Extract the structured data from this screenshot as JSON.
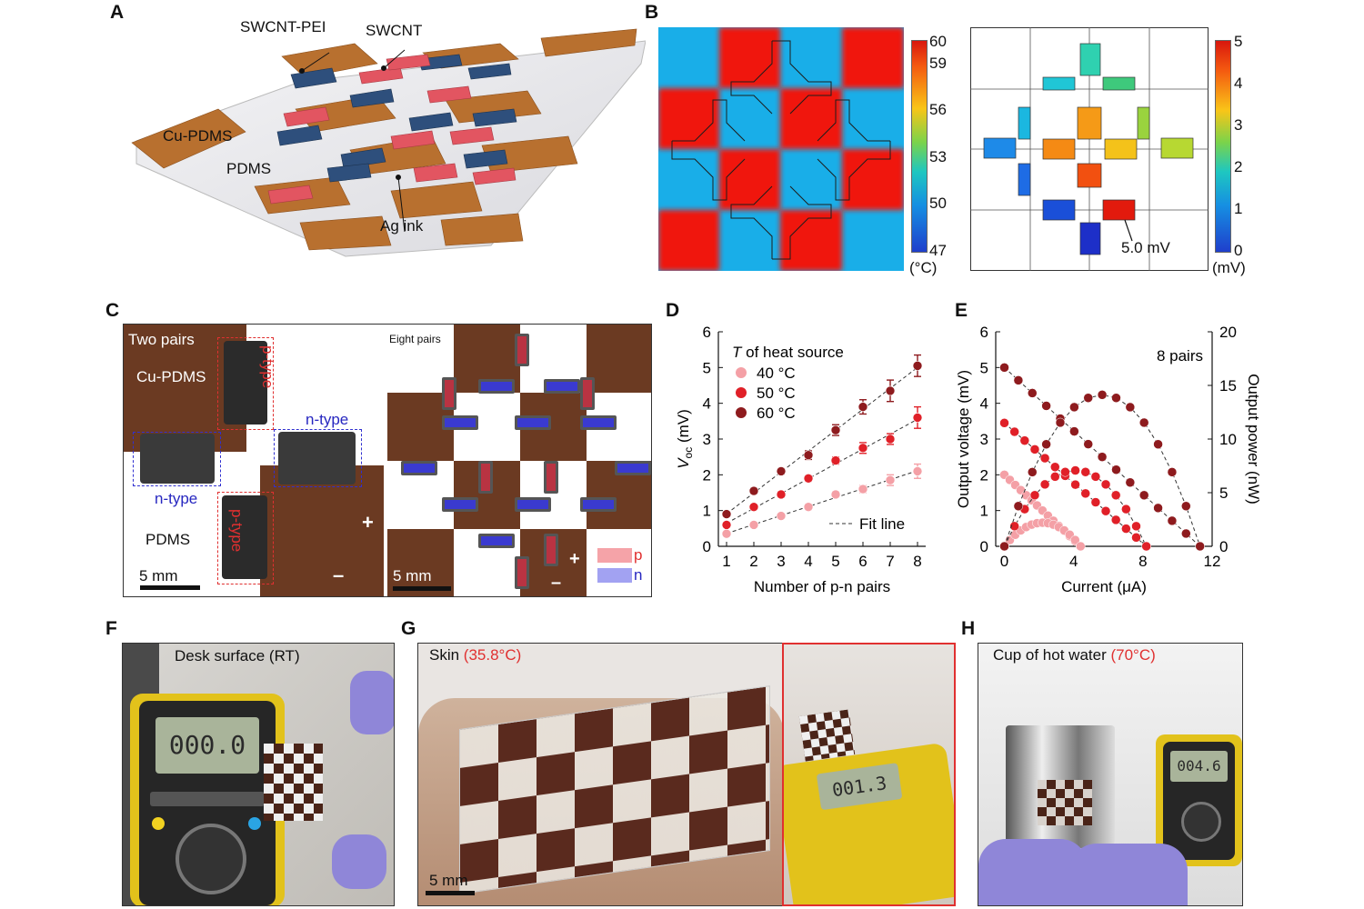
{
  "panels": {
    "a": {
      "label": "A",
      "labels": {
        "swcnt_pei": "SWCNT-PEI",
        "swcnt": "SWCNT",
        "cu_pdms": "Cu-PDMS",
        "pdms": "PDMS",
        "ag_ink": "Ag ink"
      }
    },
    "b": {
      "label": "B",
      "temp_ticks": [
        "60",
        "59",
        "56",
        "53",
        "50",
        "47"
      ],
      "temp_unit": "(°C)",
      "volt_ticks": [
        "5",
        "4",
        "3",
        "2",
        "1",
        "0"
      ],
      "volt_unit": "(mV)",
      "callout": "5.0 mV"
    },
    "c": {
      "label": "C",
      "left": {
        "title": "Two pairs",
        "cu_pdms": "Cu-PDMS",
        "pdms": "PDMS",
        "p_type_top": "p-type",
        "p_type_bottom": "p-type",
        "n_type_right": "n-type",
        "n_type_left": "n-type",
        "plus": "+",
        "minus": "–",
        "scale": "5 mm"
      },
      "right": {
        "title": "Eight pairs",
        "plus": "+",
        "minus": "–",
        "scale": "5 mm",
        "legend_p": "p",
        "legend_n": "n"
      },
      "colors": {
        "p": "#f08c92",
        "n": "#8e8ef5",
        "cu": "#6b3a22"
      }
    },
    "d": {
      "label": "D"
    },
    "e": {
      "label": "E"
    },
    "f": {
      "label": "F",
      "caption": "Desk surface (RT)",
      "meter_reading": "000.0"
    },
    "g": {
      "label": "G",
      "caption_prefix": "Skin ",
      "caption_temp": "(35.8°C)",
      "scale": "5 mm",
      "meter_reading": "001.3"
    },
    "h": {
      "label": "H",
      "caption_prefix": "Cup of hot water ",
      "caption_temp": "(70°C)",
      "meter_reading": "004.6"
    }
  },
  "chart_data": [
    {
      "type": "scatter",
      "panel": "D",
      "xlabel": "Number of p-n pairs",
      "ylabel_main": "V",
      "ylabel_sub": "oc",
      "ylabel_unit": " (mV)",
      "xlim": [
        0.7,
        8.3
      ],
      "ylim": [
        0,
        6
      ],
      "xticks": [
        1,
        2,
        3,
        4,
        5,
        6,
        7,
        8
      ],
      "yticks": [
        0,
        1,
        2,
        3,
        4,
        5,
        6
      ],
      "legend_title_italic": "T",
      "legend_title_rest": " of heat source",
      "fit_label": "Fit line",
      "series": [
        {
          "name": "40 °C",
          "color": "#f4a0a6",
          "x": [
            1,
            2,
            3,
            4,
            5,
            6,
            7,
            8
          ],
          "y": [
            0.35,
            0.6,
            0.85,
            1.1,
            1.45,
            1.6,
            1.85,
            2.1
          ],
          "err": [
            0.05,
            0.05,
            0.05,
            0.08,
            0.08,
            0.1,
            0.15,
            0.2
          ]
        },
        {
          "name": "50 °C",
          "color": "#e02028",
          "x": [
            1,
            2,
            3,
            4,
            5,
            6,
            7,
            8
          ],
          "y": [
            0.6,
            1.1,
            1.45,
            1.9,
            2.4,
            2.75,
            3.0,
            3.6
          ],
          "err": [
            0.05,
            0.05,
            0.08,
            0.08,
            0.1,
            0.15,
            0.15,
            0.3
          ]
        },
        {
          "name": "60 °C",
          "color": "#8e1b1e",
          "x": [
            1,
            2,
            3,
            4,
            5,
            6,
            7,
            8
          ],
          "y": [
            0.9,
            1.55,
            2.1,
            2.55,
            3.25,
            3.9,
            4.35,
            5.05
          ],
          "err": [
            0.05,
            0.08,
            0.08,
            0.12,
            0.15,
            0.2,
            0.3,
            0.3
          ]
        }
      ]
    },
    {
      "type": "scatter",
      "panel": "E",
      "xlabel": "Current (μA)",
      "ylabel": "Output voltage (mV)",
      "y2label": "Output power (nW)",
      "annotation": "8 pairs",
      "xlim": [
        -0.5,
        12
      ],
      "ylim": [
        0,
        6
      ],
      "y2lim": [
        0,
        20
      ],
      "xticks": [
        0,
        4,
        8,
        12
      ],
      "yticks": [
        0,
        1,
        2,
        3,
        4,
        5,
        6
      ],
      "y2ticks": [
        0,
        5,
        10,
        15,
        20
      ],
      "series": [
        {
          "name": "40 °C",
          "color": "#f4a0a6",
          "isc": 4.4,
          "voc": 2.0
        },
        {
          "name": "50 °C",
          "color": "#e02028",
          "isc": 8.2,
          "voc": 3.45
        },
        {
          "name": "60 °C",
          "color": "#8e1b1e",
          "isc": 11.3,
          "voc": 5.0
        }
      ]
    }
  ]
}
